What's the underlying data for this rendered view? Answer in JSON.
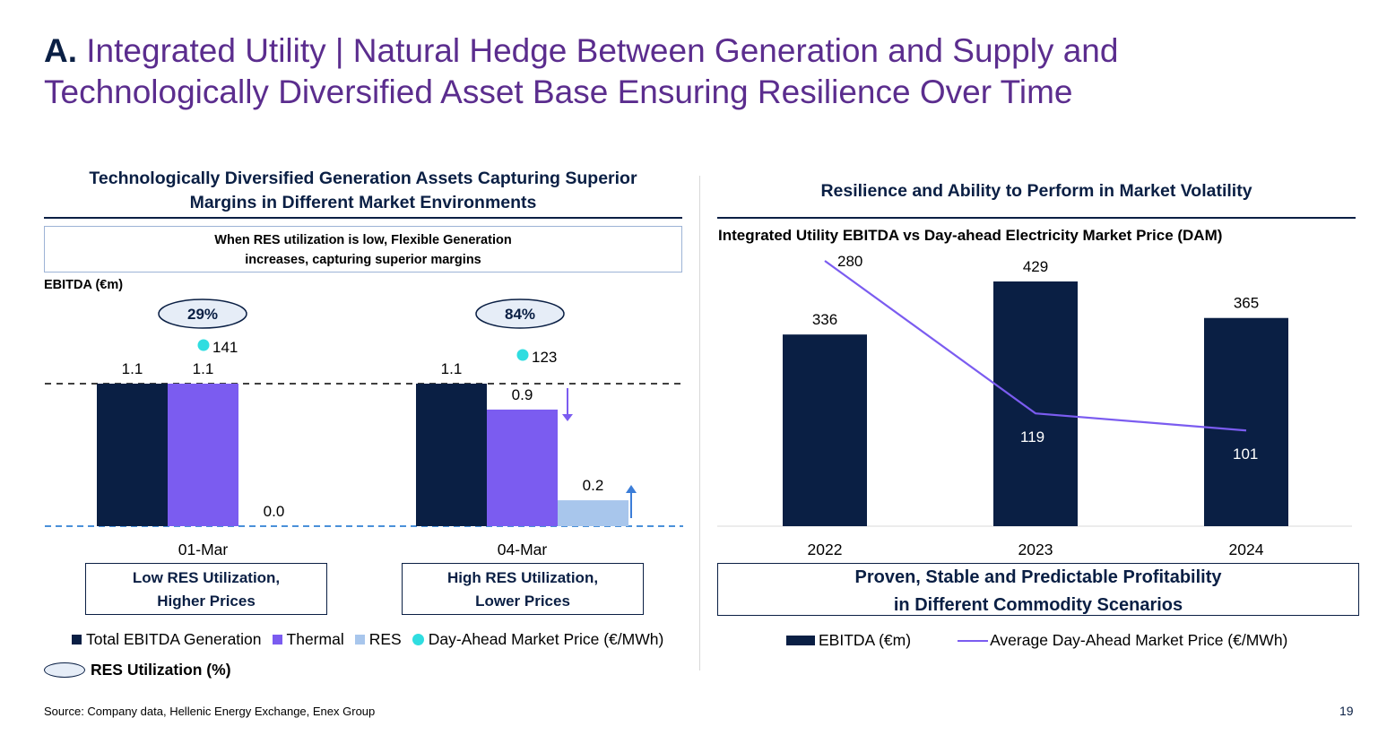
{
  "title": {
    "prefix": "A.",
    "text": "Integrated Utility | Natural Hedge Between Generation and Supply and Technologically Diversified Asset Base Ensuring Resilience Over Time"
  },
  "left_panel": {
    "title_line1": "Technologically Diversified Generation Assets Capturing Superior",
    "title_line2": "Margins in Different Market Environments",
    "note_line1": "When RES utilization is low, Flexible Generation",
    "note_line2": "increases, capturing superior margins",
    "ylabel": "EBITDA (€m)",
    "scenarios": [
      {
        "line1": "Low RES Utilization,",
        "line2": "Higher Prices"
      },
      {
        "line1": "High RES Utilization,",
        "line2": "Lower Prices"
      }
    ],
    "legend": {
      "total": "Total EBITDA Generation",
      "thermal": "Thermal",
      "res": "RES",
      "dam": "Day-Ahead Market Price (€/MWh)",
      "utilization": "RES Utilization (%)"
    }
  },
  "right_panel": {
    "title": "Resilience and Ability to Perform in Market Volatility",
    "subtitle": "Integrated Utility EBITDA vs Day-ahead Electricity Market Price (DAM)",
    "scenario_line1": "Proven, Stable and Predictable Profitability",
    "scenario_line2": "in Different Commodity Scenarios",
    "legend": {
      "ebitda": "EBITDA (€m)",
      "dam": "Average Day-Ahead Market Price (€/MWh)"
    }
  },
  "chart_data": [
    {
      "type": "bar",
      "categories": [
        "01-Mar",
        "04-Mar"
      ],
      "ylabel": "EBITDA (€m)",
      "series": [
        {
          "name": "Total EBITDA Generation",
          "values": [
            1.1,
            1.1
          ],
          "labels": [
            "1.1",
            "1.1"
          ],
          "color": "#0a1f44"
        },
        {
          "name": "Thermal",
          "values": [
            1.1,
            0.9
          ],
          "labels": [
            "1.1",
            "0.9"
          ],
          "color": "#7b5cf0"
        },
        {
          "name": "RES",
          "values": [
            0.0,
            0.2
          ],
          "labels": [
            "0.0",
            "0.2"
          ],
          "color": "#a8c6ec"
        }
      ],
      "day_ahead_price": {
        "name": "Day-Ahead Market Price (€/MWh)",
        "values": [
          141,
          123
        ],
        "color": "#2fdde0"
      },
      "res_utilization": {
        "name": "RES Utilization (%)",
        "values": [
          "29%",
          "84%"
        ]
      },
      "ylim": [
        0,
        1.1
      ]
    },
    {
      "type": "bar",
      "categories": [
        "2022",
        "2023",
        "2024"
      ],
      "series": [
        {
          "name": "EBITDA (€m)",
          "values": [
            336,
            429,
            365
          ],
          "color": "#0a1f44"
        }
      ],
      "line": {
        "name": "Average Day-Ahead Market Price (€/MWh)",
        "values": [
          280,
          119,
          101
        ],
        "color": "#7b5cf0"
      },
      "ylim": [
        0,
        429
      ],
      "line_ylim": [
        0,
        280
      ]
    }
  ],
  "footer": {
    "source": "Source: Company data, Hellenic Energy Exchange, Enex Group",
    "page": "19"
  }
}
